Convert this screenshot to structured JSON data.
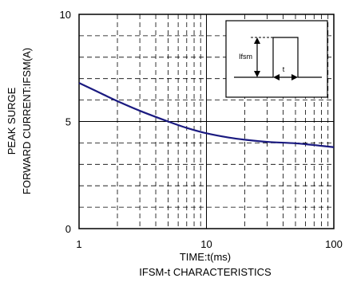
{
  "chart_data": {
    "type": "line",
    "title": "IFSM-t CHARACTERISTICS",
    "xlabel": "TIME:t(ms)",
    "ylabel_lines": [
      "PEAK SURGE",
      "FORWARD CURRENT:IFSM(A)"
    ],
    "x_scale": "log",
    "xlim": [
      1,
      100
    ],
    "ylim": [
      0,
      10
    ],
    "x_ticks": [
      1,
      10,
      100
    ],
    "y_ticks": [
      0,
      5,
      10
    ],
    "grid": true,
    "legend": "none",
    "series": [
      {
        "x": [
          1,
          1.5,
          2,
          3,
          5,
          7,
          10,
          15,
          20,
          30,
          50,
          70,
          100
        ],
        "y": [
          6.8,
          6.3,
          5.95,
          5.5,
          5.0,
          4.7,
          4.45,
          4.25,
          4.15,
          4.05,
          3.98,
          3.9,
          3.8
        ],
        "color": "#1a1a80"
      }
    ],
    "inset": {
      "label_ifsm": "Ifsm",
      "label_t": "t"
    }
  }
}
